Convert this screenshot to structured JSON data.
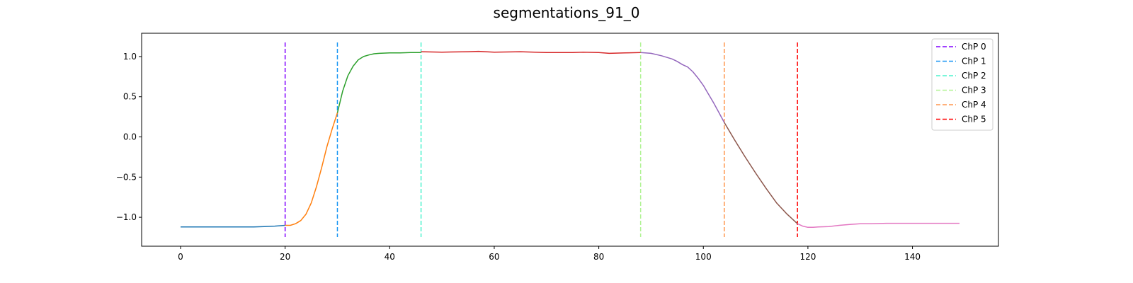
{
  "chart_data": {
    "type": "line",
    "title": "segmentations_91_0",
    "xlabel": "",
    "ylabel": "",
    "xlim": [
      -7.45,
      156.45
    ],
    "ylim": [
      -1.36,
      1.29
    ],
    "xticks": [
      0,
      20,
      40,
      60,
      80,
      100,
      120,
      140
    ],
    "yticks": [
      -1.0,
      -0.5,
      0.0,
      0.5,
      1.0
    ],
    "xtick_labels": [
      "0",
      "20",
      "40",
      "60",
      "80",
      "100",
      "120",
      "140"
    ],
    "ytick_labels": [
      "−1.0",
      "−0.5",
      "0.0",
      "0.5",
      "1.0"
    ],
    "grid": false,
    "legend_position": "top-right",
    "segments": [
      {
        "color": "#1f77b4",
        "x": [
          0,
          2,
          4,
          6,
          8,
          10,
          12,
          14,
          16,
          18,
          20
        ],
        "y": [
          -1.12,
          -1.12,
          -1.12,
          -1.12,
          -1.12,
          -1.12,
          -1.12,
          -1.12,
          -1.115,
          -1.11,
          -1.1
        ]
      },
      {
        "color": "#ff7f0e",
        "x": [
          20,
          21,
          22,
          23,
          24,
          25,
          26,
          27,
          28,
          29,
          30
        ],
        "y": [
          -1.1,
          -1.1,
          -1.08,
          -1.04,
          -0.96,
          -0.82,
          -0.62,
          -0.38,
          -0.12,
          0.1,
          0.3
        ]
      },
      {
        "color": "#2ca02c",
        "x": [
          30,
          31,
          32,
          33,
          34,
          35,
          36,
          37,
          38,
          40,
          42,
          44,
          46
        ],
        "y": [
          0.3,
          0.57,
          0.76,
          0.88,
          0.96,
          1.0,
          1.02,
          1.035,
          1.04,
          1.045,
          1.045,
          1.05,
          1.05
        ]
      },
      {
        "color": "#d62728",
        "x": [
          46,
          50,
          55,
          57,
          60,
          65,
          70,
          75,
          77,
          80,
          82,
          85,
          88
        ],
        "y": [
          1.06,
          1.055,
          1.06,
          1.065,
          1.055,
          1.06,
          1.05,
          1.05,
          1.055,
          1.05,
          1.04,
          1.045,
          1.05
        ]
      },
      {
        "color": "#9467bd",
        "x": [
          88,
          90,
          92,
          94,
          95,
          96,
          97,
          98,
          99,
          100,
          101,
          102,
          103,
          104
        ],
        "y": [
          1.05,
          1.04,
          1.01,
          0.97,
          0.94,
          0.9,
          0.87,
          0.81,
          0.73,
          0.64,
          0.53,
          0.42,
          0.3,
          0.18
        ]
      },
      {
        "color": "#8c564b",
        "x": [
          104,
          106,
          108,
          110,
          112,
          114,
          116,
          118
        ],
        "y": [
          0.18,
          -0.04,
          -0.25,
          -0.45,
          -0.64,
          -0.82,
          -0.96,
          -1.08
        ]
      },
      {
        "color": "#e377c2",
        "x": [
          118,
          119,
          120,
          121,
          122,
          124,
          126,
          128,
          130,
          132,
          135,
          140,
          145,
          149
        ],
        "y": [
          -1.08,
          -1.11,
          -1.125,
          -1.125,
          -1.12,
          -1.115,
          -1.1,
          -1.09,
          -1.08,
          -1.08,
          -1.075,
          -1.075,
          -1.075,
          -1.075
        ]
      }
    ],
    "changepoints": [
      {
        "label": "ChP 0",
        "x": 20,
        "color": "#8000ff"
      },
      {
        "label": "ChP 1",
        "x": 30,
        "color": "#1996f3"
      },
      {
        "label": "ChP 2",
        "x": 46,
        "color": "#4df3ce"
      },
      {
        "label": "ChP 3",
        "x": 88,
        "color": "#b2f396"
      },
      {
        "label": "ChP 4",
        "x": 104,
        "color": "#ff964f"
      },
      {
        "label": "ChP 5",
        "x": 118,
        "color": "#ff0000"
      }
    ]
  }
}
